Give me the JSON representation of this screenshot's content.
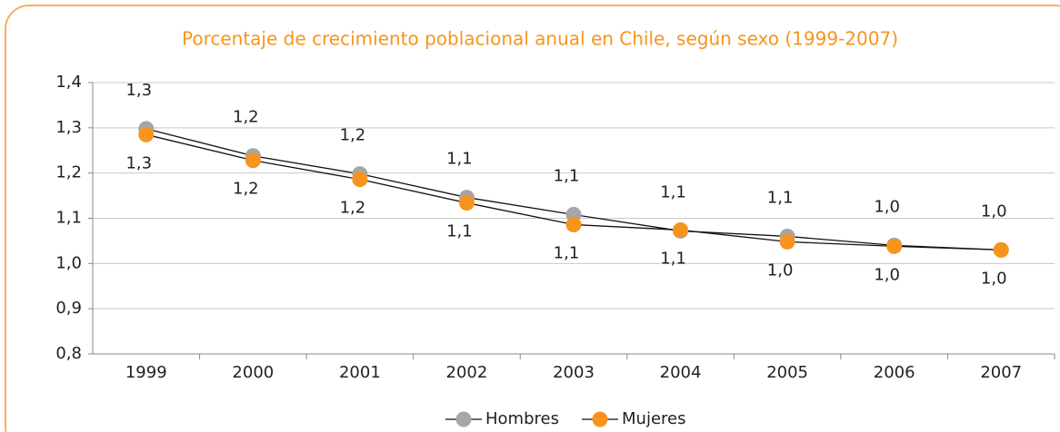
{
  "chart_data": {
    "type": "line",
    "title": "Porcentaje de crecimiento poblacional anual en Chile, según sexo (1999-2007)",
    "categories": [
      "1999",
      "2000",
      "2001",
      "2002",
      "2003",
      "2004",
      "2005",
      "2006",
      "2007"
    ],
    "series": [
      {
        "name": "Hombres",
        "color": "#a6a6a6",
        "values": [
          1.298,
          1.238,
          1.198,
          1.146,
          1.108,
          1.072,
          1.06,
          1.04,
          1.03
        ],
        "value_labels": [
          "1,3",
          "1,2",
          "1,2",
          "1,1",
          "1,1",
          "1,1",
          "1,1",
          "1,0",
          "1,0"
        ]
      },
      {
        "name": "Mujeres",
        "color": "#f7941d",
        "values": [
          1.285,
          1.228,
          1.186,
          1.134,
          1.086,
          1.074,
          1.048,
          1.038,
          1.03
        ],
        "value_labels": [
          "1,3",
          "1,2",
          "1,2",
          "1,1",
          "1,1",
          "1,1",
          "1,0",
          "1,0",
          "1,0"
        ]
      }
    ],
    "ylim": [
      0.8,
      1.4
    ],
    "yticks": [
      {
        "value": 0.8,
        "label": "0,8"
      },
      {
        "value": 0.9,
        "label": "0,9"
      },
      {
        "value": 1.0,
        "label": "1,0"
      },
      {
        "value": 1.1,
        "label": "1,1"
      },
      {
        "value": 1.2,
        "label": "1,2"
      },
      {
        "value": 1.3,
        "label": "1,3"
      },
      {
        "value": 1.4,
        "label": "1,4"
      }
    ],
    "grid": true,
    "legend": "bottom"
  }
}
